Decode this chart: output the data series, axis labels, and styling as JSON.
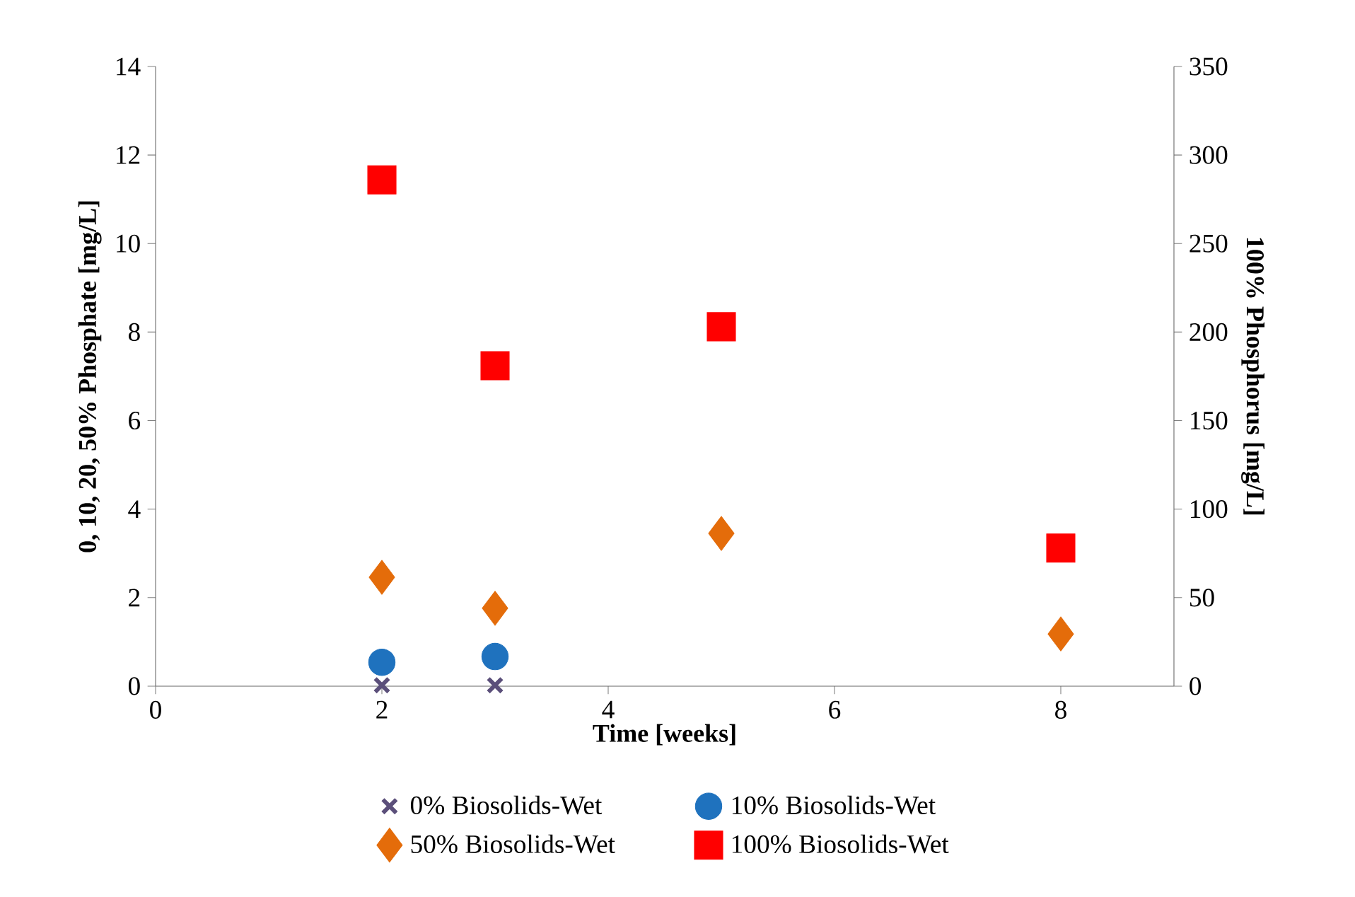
{
  "chart_data": {
    "type": "scatter",
    "xlabel": "Time [weeks]",
    "ylabel": "0, 10, 20, 50% Phosphate [mg/L]",
    "y2label": "100%  Phosphorus [mg/L]",
    "xlim": [
      0,
      9
    ],
    "xticks": [
      0,
      2,
      4,
      6,
      8
    ],
    "ylim": [
      0,
      14
    ],
    "yticks": [
      0,
      2,
      4,
      6,
      8,
      10,
      12,
      14
    ],
    "y2lim": [
      0,
      350
    ],
    "y2ticks": [
      0,
      50,
      100,
      150,
      200,
      250,
      300,
      350
    ],
    "grid": false,
    "legend": "bottom",
    "series": [
      {
        "name": "0% Biosolids-Wet",
        "color": "#5b4f7a",
        "marker": "cross",
        "x": [
          2,
          3
        ],
        "values": [
          0.02,
          0.02
        ]
      },
      {
        "name": "10% Biosolids-Wet",
        "color": "#1f72be",
        "marker": "circle",
        "x": [
          2,
          3
        ],
        "values": [
          0.54,
          0.67
        ]
      },
      {
        "name": "50% Biosolids-Wet",
        "color": "#e46c0a",
        "marker": "diamond",
        "x": [
          2,
          3,
          5,
          8
        ],
        "values": [
          2.46,
          1.76,
          3.45,
          1.18
        ]
      },
      {
        "name": "100% Biosolids-Wet",
        "color": "#ff0000",
        "marker": "square",
        "axis": "y2",
        "x": [
          2,
          3,
          5,
          8
        ],
        "values": [
          286,
          181,
          203,
          78
        ]
      }
    ]
  }
}
